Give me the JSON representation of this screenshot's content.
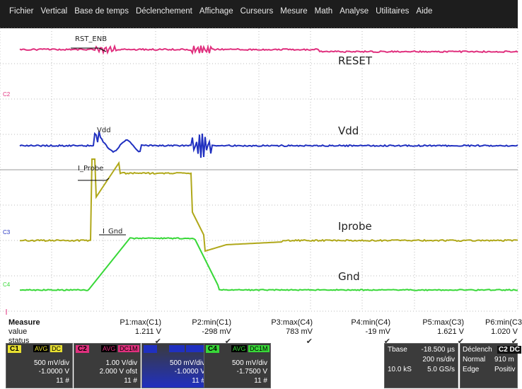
{
  "menu": [
    "Fichier",
    "Vertical",
    "Base de temps",
    "Déclenchement",
    "Affichage",
    "Curseurs",
    "Mesure",
    "Math",
    "Analyse",
    "Utilitaires",
    "Aide"
  ],
  "colors": {
    "c1": "#e0307e",
    "c2": "#2030c0",
    "c3": "#b0a81a",
    "c4": "#38d838",
    "menubar": "#1d1d1d",
    "panel": "#3b3b3b"
  },
  "plot": {
    "labels": {
      "reset": "RESET",
      "vdd": "Vdd",
      "iprobe": "Iprobe",
      "gnd": "Gnd"
    },
    "markers": {
      "rst_enb": "RST_ENB",
      "vdd_marker": "Vdd",
      "i_probe": "I_Probe",
      "i_gnd": "I_Gnd"
    },
    "channel_marks": {
      "c2": "C2",
      "c3": "C3",
      "c4": "C4"
    }
  },
  "measure": {
    "header": "Measure",
    "row_value": "value",
    "row_status": "status",
    "params": [
      {
        "name": "P1:max(C1)",
        "value": "1.211 V"
      },
      {
        "name": "P2:min(C1)",
        "value": "-298 mV"
      },
      {
        "name": "P3:max(C4)",
        "value": "783 mV"
      },
      {
        "name": "P4:min(C4)",
        "value": "-19 mV"
      },
      {
        "name": "P5:max(C3)",
        "value": "1.621 V"
      },
      {
        "name": "P6:min(C3",
        "value": "1.020 V"
      }
    ]
  },
  "channels": [
    {
      "tag": "C1",
      "avg": "AVG",
      "coupling": "DC",
      "l1": "500 mV/div",
      "l2": "-1.0000 V",
      "l3": "11 #"
    },
    {
      "tag": "C2",
      "avg": "AVG",
      "coupling": "DC1M",
      "l1": "1.00 V/div",
      "l2": "2.000 V ofst",
      "l3": "11 #"
    },
    {
      "tag": "C3",
      "avg": "AVG",
      "coupling": "DC1M",
      "l1": "500 mV/div",
      "l2": "-1.0000 V",
      "l3": "11 #"
    },
    {
      "tag": "C4",
      "avg": "AVG",
      "coupling": "DC1M",
      "l1": "500 mV/div",
      "l2": "-1.7500 V",
      "l3": "11 #"
    }
  ],
  "timebase": {
    "label": "Tbase",
    "offset": "-18.500 µs",
    "div": "200 ns/div",
    "samples": "10.0 kS",
    "rate": "5.0 GS/s"
  },
  "trigger": {
    "label": "Déclench",
    "tag": "C2 DC",
    "mode": "Normal",
    "level": "910 m",
    "type": "Edge",
    "slope": "Positiv"
  }
}
